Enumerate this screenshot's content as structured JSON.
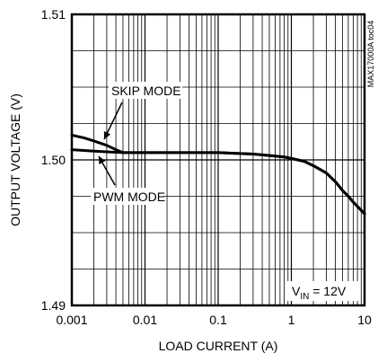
{
  "chart_data": {
    "type": "line",
    "source_code": "MAX17000A toc04",
    "xlabel": "LOAD CURRENT (A)",
    "ylabel": "OUTPUT VOLTAGE (V)",
    "x_scale": "log",
    "xlim": [
      0.001,
      10
    ],
    "ylim": [
      1.49,
      1.51
    ],
    "x_ticks": [
      "0.001",
      "0.01",
      "0.1",
      "1",
      "10"
    ],
    "y_ticks": [
      "1.49",
      "1.50",
      "1.51"
    ],
    "grid": true,
    "condition": {
      "main": "V",
      "sub": "IN",
      "rest": " = 12V"
    },
    "series": [
      {
        "name": "SKIP MODE",
        "x": [
          0.001,
          0.0015,
          0.002,
          0.003,
          0.004,
          0.005,
          0.007,
          0.01,
          0.05,
          0.1,
          0.3,
          0.5,
          0.8,
          1,
          1.5,
          2,
          3,
          4,
          5,
          6,
          7,
          8,
          10
        ],
        "y": [
          1.5017,
          1.5015,
          1.5013,
          1.501,
          1.5007,
          1.5005,
          1.5005,
          1.5005,
          1.5005,
          1.5005,
          1.5004,
          1.5003,
          1.5002,
          1.5001,
          1.4999,
          1.4996,
          1.4991,
          1.4985,
          1.4979,
          1.4975,
          1.4971,
          1.4968,
          1.4963
        ]
      },
      {
        "name": "PWM MODE",
        "x": [
          0.001,
          0.002,
          0.005,
          0.01,
          0.05,
          0.1,
          0.3,
          0.5,
          0.8,
          1,
          1.5,
          2,
          3,
          4,
          5,
          6,
          7,
          8,
          10
        ],
        "y": [
          1.5007,
          1.5006,
          1.5005,
          1.5005,
          1.5005,
          1.5005,
          1.5004,
          1.5003,
          1.5002,
          1.5001,
          1.4999,
          1.4996,
          1.4991,
          1.4985,
          1.4979,
          1.4975,
          1.4971,
          1.4968,
          1.4963
        ]
      }
    ],
    "annotations": [
      "SKIP MODE",
      "PWM MODE"
    ]
  }
}
